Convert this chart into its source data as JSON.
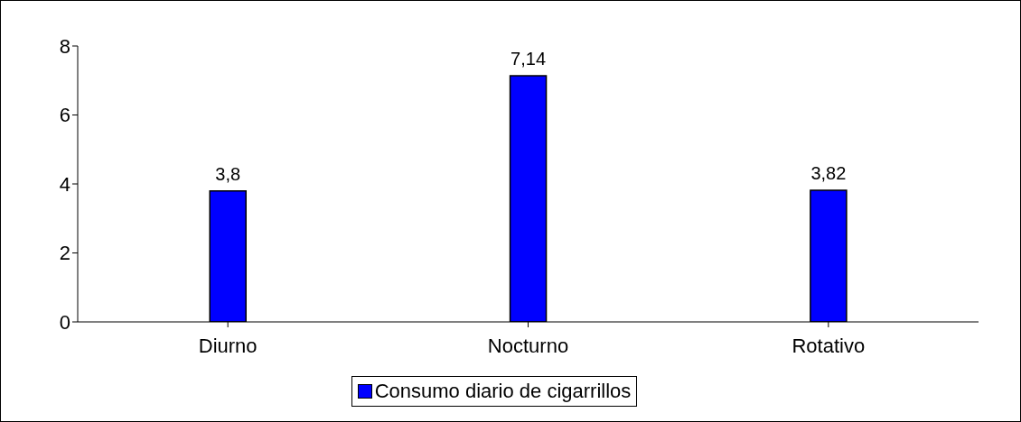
{
  "chart_data": {
    "type": "bar",
    "categories": [
      "Diurno",
      "Nocturno",
      "Rotativo"
    ],
    "series": [
      {
        "name": "Consumo diario de cigarrillos",
        "color": "#0000ff",
        "values": [
          3.8,
          7.14,
          3.82
        ],
        "value_labels": [
          "3,8",
          "7,14",
          "3,82"
        ]
      }
    ],
    "ylim": [
      0,
      8
    ],
    "yticks": [
      0,
      2,
      4,
      6,
      8
    ],
    "grid": false,
    "legend": "bottom"
  }
}
